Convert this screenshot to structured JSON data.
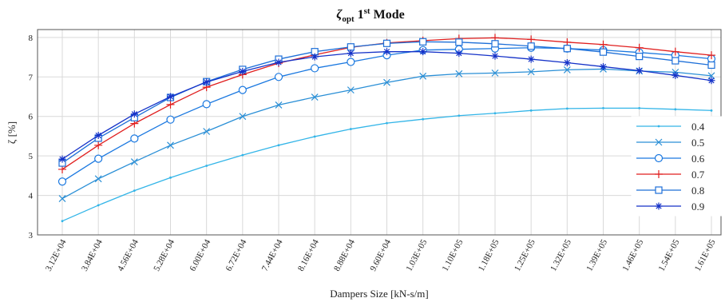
{
  "chart_data": {
    "type": "line",
    "title": {
      "main": "ζ",
      "sub": "opt",
      "rest": " 1",
      "sup": "st",
      "tail": " Mode"
    },
    "xlabel": "Dampers Size [kN-s/m]",
    "ylabel": "ζ [%]",
    "ylim": [
      3,
      8.2
    ],
    "yticks": [
      "3",
      "4",
      "5",
      "6",
      "7",
      "8"
    ],
    "grid": true,
    "legend_position": "right",
    "categories": [
      "3.12E+04",
      "3.84E+04",
      "4.56E+04",
      "5.28E+04",
      "6.00E+04",
      "6.72E+04",
      "7.44E+04",
      "8.16E+04",
      "8.88E+04",
      "9.60E+04",
      "1.03E+05",
      "1.10E+05",
      "1.18E+05",
      "1.25E+05",
      "1.32E+05",
      "1.39E+05",
      "1.46E+05",
      "1.54E+05",
      "1.61E+05"
    ],
    "series": [
      {
        "name": "0.4",
        "color": "#33b5e8",
        "marker": "point",
        "values": [
          3.35,
          3.75,
          4.12,
          4.45,
          4.75,
          5.02,
          5.27,
          5.49,
          5.68,
          5.83,
          5.93,
          6.02,
          6.08,
          6.15,
          6.2,
          6.21,
          6.21,
          6.18,
          6.15
        ]
      },
      {
        "name": "0.5",
        "color": "#2a8fd6",
        "marker": "x",
        "values": [
          3.92,
          4.42,
          4.85,
          5.27,
          5.62,
          6.0,
          6.29,
          6.49,
          6.67,
          6.86,
          7.02,
          7.08,
          7.1,
          7.13,
          7.18,
          7.2,
          7.15,
          7.12,
          7.03
        ]
      },
      {
        "name": "0.6",
        "color": "#1a78e0",
        "marker": "circle",
        "values": [
          4.35,
          4.93,
          5.44,
          5.92,
          6.31,
          6.67,
          7.0,
          7.22,
          7.38,
          7.55,
          7.68,
          7.7,
          7.72,
          7.74,
          7.72,
          7.68,
          7.62,
          7.55,
          7.46
        ]
      },
      {
        "name": "0.7",
        "color": "#e01e1e",
        "marker": "plus",
        "values": [
          4.66,
          5.27,
          5.82,
          6.3,
          6.74,
          7.06,
          7.35,
          7.56,
          7.75,
          7.86,
          7.92,
          7.97,
          7.99,
          7.95,
          7.88,
          7.82,
          7.74,
          7.64,
          7.55
        ]
      },
      {
        "name": "0.8",
        "color": "#1d6fd8",
        "marker": "square",
        "values": [
          4.82,
          5.45,
          5.97,
          6.48,
          6.88,
          7.19,
          7.45,
          7.64,
          7.76,
          7.85,
          7.89,
          7.88,
          7.84,
          7.78,
          7.72,
          7.63,
          7.52,
          7.41,
          7.3
        ]
      },
      {
        "name": "0.9",
        "color": "#1532c8",
        "marker": "asterisk",
        "values": [
          4.92,
          5.52,
          6.06,
          6.5,
          6.87,
          7.14,
          7.37,
          7.51,
          7.6,
          7.64,
          7.64,
          7.6,
          7.53,
          7.45,
          7.36,
          7.26,
          7.16,
          7.04,
          6.91
        ]
      }
    ]
  }
}
